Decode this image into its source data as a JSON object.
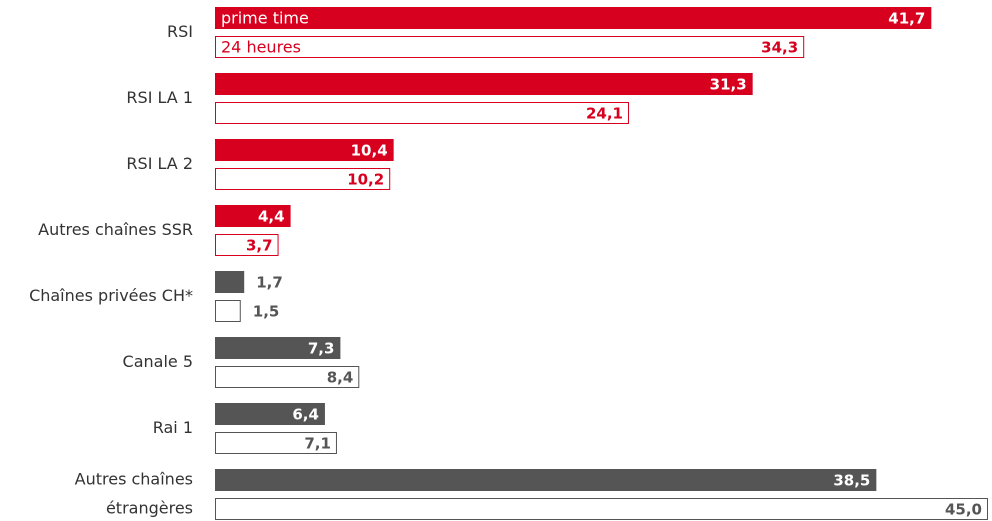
{
  "chart_data": {
    "type": "bar",
    "orientation": "horizontal",
    "categories": [
      "RSI",
      "RSI LA 1",
      "RSI LA 2",
      "Autres chaînes SSR",
      "Chaînes privées CH*",
      "Canale 5",
      "Rai 1",
      [
        "Autres chaînes",
        "étrangères"
      ]
    ],
    "category_colors": [
      "#d7001e",
      "#d7001e",
      "#d7001e",
      "#d7001e",
      "#555555",
      "#555555",
      "#555555",
      "#555555"
    ],
    "series": [
      {
        "name": "prime time",
        "fill": "solid",
        "values": [
          41.7,
          31.3,
          10.4,
          4.4,
          1.7,
          7.3,
          6.4,
          38.5
        ],
        "value_labels": [
          "41,7",
          "31,3",
          "10,4",
          "4,4",
          "1,7",
          "7,3",
          "6,4",
          "38,5"
        ]
      },
      {
        "name": "24 heures",
        "fill": "outline",
        "values": [
          34.3,
          24.1,
          10.2,
          3.7,
          1.5,
          8.4,
          7.1,
          45.0
        ],
        "value_labels": [
          "34,3",
          "24,1",
          "10,2",
          "3,7",
          "1,5",
          "8,4",
          "7,1",
          "45,0"
        ]
      }
    ]
  }
}
